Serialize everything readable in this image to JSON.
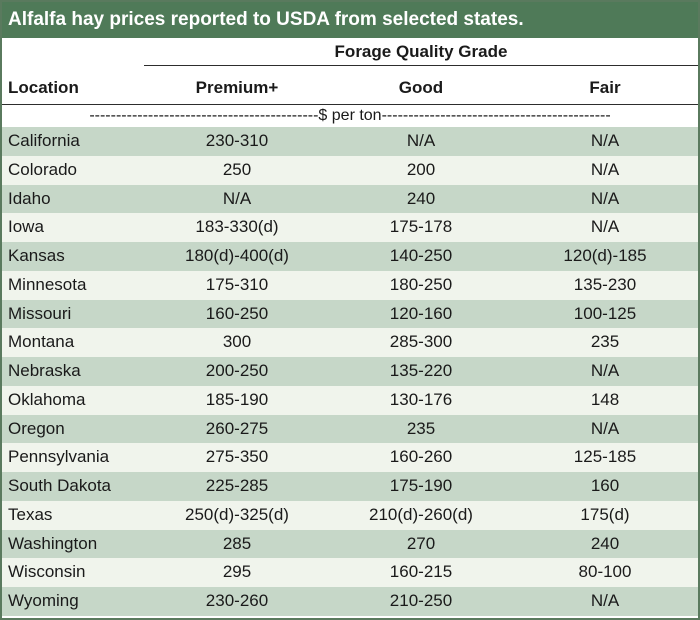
{
  "title": "Alfalfa hay prices reported to USDA from selected states.",
  "header": {
    "group_label": "Forage Quality Grade",
    "location_label": "Location",
    "columns": [
      "Premium+",
      "Good",
      "Fair"
    ],
    "unit_row": "-------------------------------------------$ per ton-------------------------------------------"
  },
  "colors": {
    "title_bar": "#4f7a58",
    "row_shade": "#c6d7c8",
    "row_light": "#f0f4ec"
  },
  "rows": [
    {
      "location": "California",
      "premium": "230-310",
      "good": "N/A",
      "fair": "N/A"
    },
    {
      "location": "Colorado",
      "premium": "250",
      "good": "200",
      "fair": "N/A"
    },
    {
      "location": "Idaho",
      "premium": "N/A",
      "good": "240",
      "fair": "N/A"
    },
    {
      "location": "Iowa",
      "premium": "183-330(d)",
      "good": "175-178",
      "fair": "N/A"
    },
    {
      "location": "Kansas",
      "premium": "180(d)-400(d)",
      "good": "140-250",
      "fair": "120(d)-185"
    },
    {
      "location": "Minnesota",
      "premium": "175-310",
      "good": "180-250",
      "fair": "135-230"
    },
    {
      "location": "Missouri",
      "premium": "160-250",
      "good": "120-160",
      "fair": "100-125"
    },
    {
      "location": "Montana",
      "premium": "300",
      "good": "285-300",
      "fair": "235"
    },
    {
      "location": "Nebraska",
      "premium": "200-250",
      "good": "135-220",
      "fair": "N/A"
    },
    {
      "location": "Oklahoma",
      "premium": "185-190",
      "good": "130-176",
      "fair": "148"
    },
    {
      "location": "Oregon",
      "premium": "260-275",
      "good": "235",
      "fair": "N/A"
    },
    {
      "location": "Pennsylvania",
      "premium": "275-350",
      "good": "160-260",
      "fair": "125-185"
    },
    {
      "location": "South Dakota",
      "premium": "225-285",
      "good": "175-190",
      "fair": "160"
    },
    {
      "location": "Texas",
      "premium": "250(d)-325(d)",
      "good": "210(d)-260(d)",
      "fair": "175(d)"
    },
    {
      "location": "Washington",
      "premium": "285",
      "good": "270",
      "fair": "240"
    },
    {
      "location": "Wisconsin",
      "premium": "295",
      "good": "160-215",
      "fair": "80-100"
    },
    {
      "location": "Wyoming",
      "premium": "230-260",
      "good": "210-250",
      "fair": "N/A"
    }
  ]
}
